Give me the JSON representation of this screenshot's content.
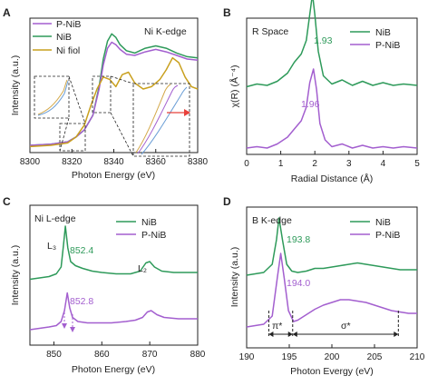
{
  "colors": {
    "nib": "#2e9a5a",
    "pnib": "#a35fcf",
    "foil": "#c9a01e",
    "arrow": "#e8413b",
    "zoomA": "#d4a94a",
    "zoomB": "#6b9ed6"
  },
  "chart_data": [
    {
      "panel": "A",
      "type": "line",
      "inset_text": "Ni K-edge",
      "xlabel": "Photon Energy (eV)",
      "ylabel": "Intensity (a.u.)",
      "xlim": [
        8300,
        8380
      ],
      "xticks": [
        "8300",
        "8320",
        "8340",
        "8360",
        "8380"
      ],
      "legend": [
        "P-NiB",
        "NiB",
        "Ni fiol"
      ],
      "series": [
        {
          "name": "NiB",
          "color_key": "nib",
          "x": [
            8300,
            8310,
            8318,
            8322,
            8326,
            8330,
            8333,
            8335,
            8337,
            8339,
            8341,
            8343,
            8346,
            8350,
            8355,
            8360,
            8365,
            8370,
            8375,
            8380
          ],
          "y": [
            0.03,
            0.04,
            0.06,
            0.1,
            0.16,
            0.28,
            0.52,
            0.75,
            0.9,
            0.96,
            0.93,
            0.87,
            0.82,
            0.8,
            0.84,
            0.86,
            0.84,
            0.8,
            0.77,
            0.76
          ]
        },
        {
          "name": "P-NiB",
          "color_key": "pnib",
          "x": [
            8300,
            8310,
            8318,
            8322,
            8326,
            8330,
            8333,
            8335,
            8337,
            8339,
            8341,
            8343,
            8346,
            8350,
            8355,
            8360,
            8365,
            8370,
            8375,
            8380
          ],
          "y": [
            0.03,
            0.04,
            0.06,
            0.1,
            0.16,
            0.28,
            0.5,
            0.7,
            0.84,
            0.89,
            0.87,
            0.83,
            0.79,
            0.78,
            0.81,
            0.83,
            0.81,
            0.78,
            0.75,
            0.74
          ]
        },
        {
          "name": "Ni fiol",
          "color_key": "foil",
          "x": [
            8300,
            8310,
            8318,
            8322,
            8326,
            8329,
            8332,
            8335,
            8338,
            8341,
            8344,
            8347,
            8350,
            8354,
            8358,
            8362,
            8365,
            8368,
            8371,
            8374,
            8377,
            8380
          ],
          "y": [
            0.02,
            0.03,
            0.05,
            0.1,
            0.2,
            0.36,
            0.5,
            0.6,
            0.58,
            0.52,
            0.62,
            0.64,
            0.55,
            0.5,
            0.52,
            0.58,
            0.66,
            0.76,
            0.72,
            0.6,
            0.52,
            0.5
          ]
        }
      ]
    },
    {
      "panel": "B",
      "type": "line",
      "inset_text": "R Space",
      "xlabel": "Radial Distance (Å)",
      "ylabel": "χ(R) (Å⁻⁴)",
      "xlim": [
        0,
        5
      ],
      "xticks": [
        "0",
        "1",
        "2",
        "3",
        "4",
        "5"
      ],
      "legend": [
        "NiB",
        "P-NiB"
      ],
      "annotations": [
        "1.93",
        "1.96"
      ],
      "series": [
        {
          "name": "NiB",
          "color_key": "nib",
          "offset": 0.45,
          "x": [
            0,
            0.3,
            0.6,
            0.9,
            1.2,
            1.4,
            1.6,
            1.75,
            1.85,
            1.93,
            2.0,
            2.1,
            2.25,
            2.5,
            2.8,
            3.1,
            3.4,
            3.7,
            4.0,
            4.3,
            4.6,
            5.0
          ],
          "y": [
            0.02,
            0.04,
            0.03,
            0.06,
            0.12,
            0.2,
            0.26,
            0.36,
            0.55,
            0.7,
            0.55,
            0.28,
            0.1,
            0.04,
            0.07,
            0.03,
            0.06,
            0.03,
            0.05,
            0.03,
            0.04,
            0.03
          ]
        },
        {
          "name": "P-NiB",
          "color_key": "pnib",
          "offset": 0.0,
          "x": [
            0,
            0.3,
            0.6,
            0.9,
            1.2,
            1.4,
            1.6,
            1.75,
            1.85,
            1.96,
            2.05,
            2.15,
            2.3,
            2.5,
            2.8,
            3.1,
            3.4,
            3.7,
            4.0,
            4.3,
            4.6,
            5.0
          ],
          "y": [
            0.02,
            0.03,
            0.02,
            0.05,
            0.1,
            0.16,
            0.22,
            0.32,
            0.5,
            0.6,
            0.45,
            0.2,
            0.08,
            0.03,
            0.05,
            0.02,
            0.04,
            0.02,
            0.03,
            0.02,
            0.03,
            0.02
          ]
        }
      ]
    },
    {
      "panel": "C",
      "type": "line",
      "inset_text": "Ni L-edge",
      "xlabel": "Photon Energy (eV)",
      "ylabel": "Intensity (a.u.)",
      "xlim": [
        845,
        880
      ],
      "xticks": [
        "850",
        "860",
        "870",
        "880"
      ],
      "legend": [
        "NiB",
        "P-NiB"
      ],
      "annotations": [
        "L₃",
        "852.4",
        "852.8",
        "L₂"
      ],
      "series": [
        {
          "name": "NiB",
          "color_key": "nib",
          "x": [
            845,
            847,
            849,
            850.5,
            851.5,
            852.0,
            852.4,
            852.9,
            853.5,
            854.5,
            856,
            858,
            860,
            863,
            866,
            868,
            869.2,
            870,
            871,
            872.5,
            875,
            878,
            880
          ],
          "y": [
            0.47,
            0.48,
            0.49,
            0.51,
            0.56,
            0.72,
            0.86,
            0.7,
            0.6,
            0.57,
            0.55,
            0.53,
            0.52,
            0.51,
            0.51,
            0.53,
            0.59,
            0.6,
            0.56,
            0.53,
            0.52,
            0.52,
            0.52
          ]
        },
        {
          "name": "P-NiB",
          "color_key": "pnib",
          "x": [
            845,
            847,
            849,
            850.5,
            851.5,
            852.2,
            852.8,
            853.3,
            853.9,
            855,
            857,
            859,
            862,
            865,
            867,
            868.5,
            869.5,
            870.3,
            871.5,
            873,
            876,
            880
          ],
          "y": [
            0.1,
            0.11,
            0.12,
            0.13,
            0.16,
            0.24,
            0.37,
            0.26,
            0.19,
            0.16,
            0.15,
            0.15,
            0.15,
            0.16,
            0.17,
            0.19,
            0.23,
            0.24,
            0.21,
            0.19,
            0.18,
            0.18
          ]
        }
      ]
    },
    {
      "panel": "D",
      "type": "line",
      "inset_text": "B K-edge",
      "xlabel": "Photon Evergy (eV)",
      "ylabel": "Intensity (a.u.)",
      "xlim": [
        190,
        210
      ],
      "xticks": [
        "190",
        "195",
        "200",
        "205",
        "210"
      ],
      "legend": [
        "NiB",
        "P-NiB"
      ],
      "annotations": [
        "193.8",
        "194.0",
        "π*",
        "σ*"
      ],
      "series": [
        {
          "name": "NiB",
          "color_key": "nib",
          "x": [
            190,
            191,
            192,
            193,
            193.5,
            193.8,
            194.2,
            194.7,
            195.3,
            196,
            197,
            198,
            199,
            200,
            201,
            202,
            203,
            204,
            205,
            206,
            207,
            208,
            209,
            210
          ],
          "y": [
            0.52,
            0.53,
            0.54,
            0.6,
            0.78,
            0.94,
            0.78,
            0.6,
            0.55,
            0.54,
            0.55,
            0.57,
            0.57,
            0.58,
            0.59,
            0.6,
            0.61,
            0.6,
            0.59,
            0.58,
            0.57,
            0.56,
            0.56,
            0.56
          ]
        },
        {
          "name": "P-NiB",
          "color_key": "pnib",
          "x": [
            190,
            191,
            192,
            193,
            193.6,
            194.0,
            194.4,
            194.9,
            195.5,
            196,
            197,
            198,
            199,
            200,
            201,
            202,
            203,
            204,
            205,
            206,
            207,
            208,
            209,
            210
          ],
          "y": [
            0.14,
            0.15,
            0.16,
            0.22,
            0.5,
            0.68,
            0.5,
            0.26,
            0.18,
            0.19,
            0.23,
            0.27,
            0.3,
            0.32,
            0.34,
            0.34,
            0.33,
            0.32,
            0.3,
            0.28,
            0.26,
            0.25,
            0.24,
            0.24
          ]
        }
      ],
      "markers": {
        "pi_start": 192.6,
        "pi_end": 195.4,
        "sigma_end": 207.8
      }
    }
  ]
}
